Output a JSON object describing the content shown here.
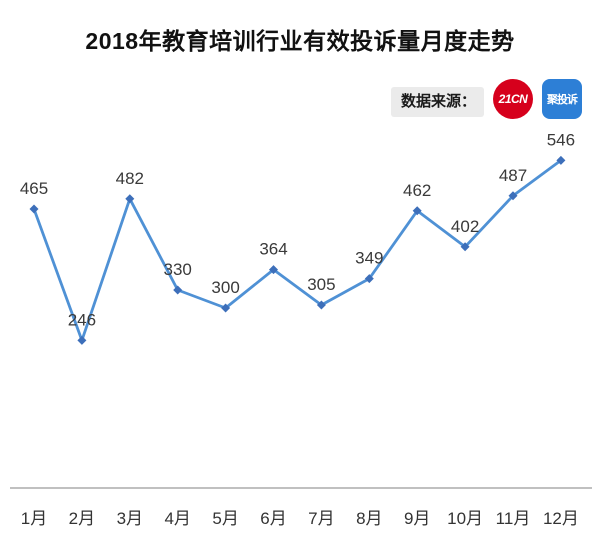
{
  "chart_data": {
    "type": "line",
    "title": "2018年教育培训行业有效投诉量月度走势",
    "categories": [
      "1月",
      "2月",
      "3月",
      "4月",
      "5月",
      "6月",
      "7月",
      "8月",
      "9月",
      "10月",
      "11月",
      "12月"
    ],
    "series": [
      {
        "name": "有效投诉量",
        "values": [
          465,
          246,
          482,
          330,
          300,
          364,
          305,
          349,
          462,
          402,
          487,
          546
        ]
      }
    ],
    "xlabel": "",
    "ylabel": "",
    "ylim": [
      0,
      580
    ],
    "grid": false,
    "legend": "none",
    "y_axis_visible": false,
    "marker": "diamond",
    "value_labels": true
  },
  "source": {
    "label": "数据来源：",
    "logos": [
      {
        "name": "21cn-logo",
        "text": "21CN",
        "bg": "#d6001c",
        "shape": "circle"
      },
      {
        "name": "jutousu-logo",
        "text": "聚投诉",
        "bg": "#2d7fd6",
        "shape": "rounded-square"
      }
    ]
  },
  "colors": {
    "line": "#4f91d5",
    "marker": "#3d6fba",
    "value_label": "#3a3a3a",
    "tick_label": "#333333",
    "axis_line": "#808080",
    "title": "#111111"
  }
}
